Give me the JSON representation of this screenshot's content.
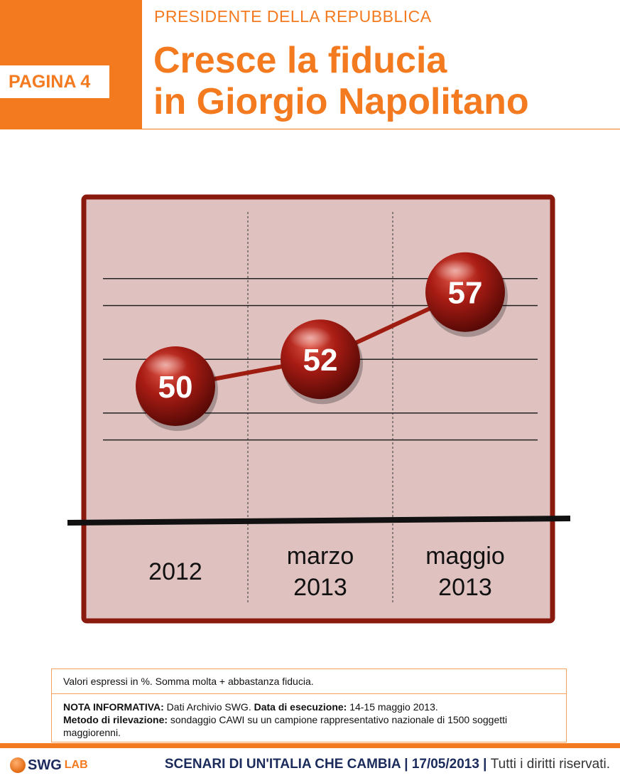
{
  "header": {
    "page_tag": "PAGINA 4",
    "section": "PRESIDENTE DELLA REPUBBLICA",
    "title_line1": "Cresce la fiducia",
    "title_line2": "in Giorgio Napolitano"
  },
  "chart_data": {
    "type": "line",
    "title": "",
    "xlabel": "",
    "ylabel": "",
    "categories": [
      [
        "2012"
      ],
      [
        "marzo",
        "2013"
      ],
      [
        "maggio",
        "2013"
      ]
    ],
    "series": [
      {
        "values": [
          50,
          52,
          57
        ]
      }
    ],
    "ylim": [
      44,
      60
    ],
    "grid": true,
    "legend": "none",
    "colors": {
      "panel": "#dfc2c0",
      "frame": "#8b1a0e",
      "line": "#9e1c10",
      "marker": "#8e1710"
    }
  },
  "notes": {
    "summary": "Valori espressi in %. Somma molta + abbastanza fiducia.",
    "nota_label": "NOTA INFORMATIVA:",
    "nota_value": " Dati Archivio SWG. ",
    "data_label": "Data di esecuzione:",
    "data_value": " 14-15 maggio 2013.",
    "metodo_label": "Metodo di rilevazione:",
    "metodo_value": " sondaggio CAWI su un campione rappresentativo nazionale di 1500 soggetti maggiorenni."
  },
  "footer": {
    "logo_main": "SWG",
    "logo_sub": "LAB",
    "title": "SCENARI DI UN'ITALIA CHE CAMBIA",
    "sep1": " | ",
    "date": "17/05/2013",
    "sep2": " | ",
    "rights": "Tutti i diritti riservati.",
    "colors": {
      "accent": "#f47a1f",
      "navy": "#1a2b5c"
    }
  }
}
